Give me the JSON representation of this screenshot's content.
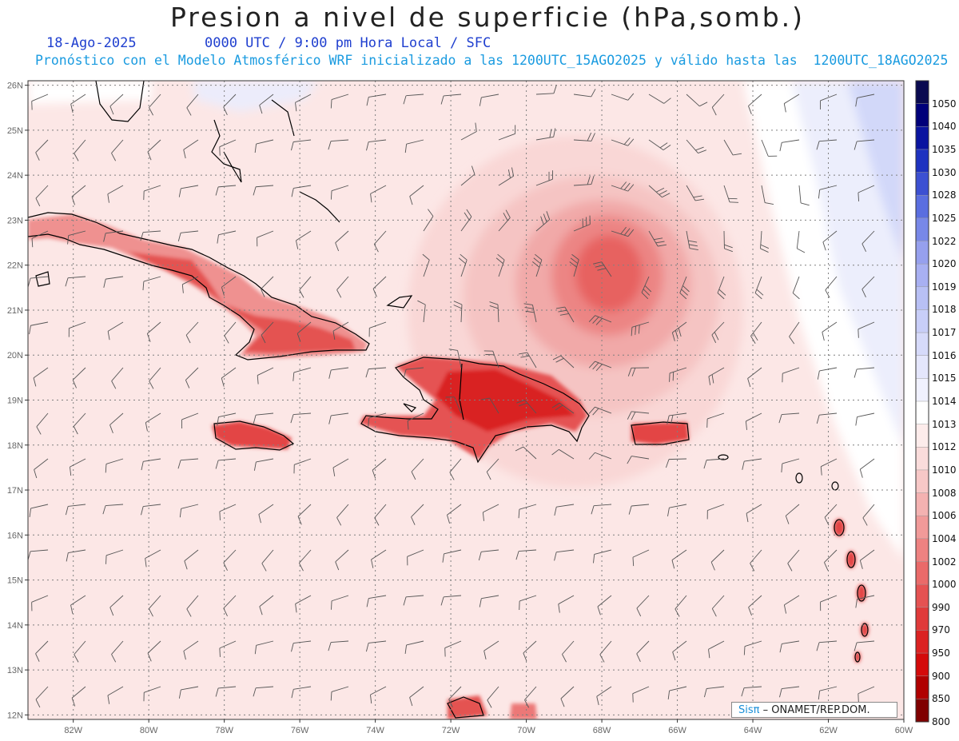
{
  "header": {
    "title": "Presion a nivel de superficie (hPa,somb.)",
    "date": "18-Ago-2025",
    "time_info": "0000 UTC / 9:00 pm Hora Local / SFC",
    "forecast_info": "Pronóstico con el Modelo Atmosférico WRF inicializado a las 1200UTC_15AGO2025 y válido hasta las  1200UTC_18AGO2025"
  },
  "map": {
    "lat_labels": [
      "26N",
      "25N",
      "24N",
      "23N",
      "22N",
      "21N",
      "20N",
      "19N",
      "18N",
      "17N",
      "16N",
      "15N",
      "14N",
      "13N",
      "12N"
    ],
    "lon_labels": [
      "82W",
      "80W",
      "78W",
      "76W",
      "74W",
      "72W",
      "70W",
      "68W",
      "66W",
      "64W",
      "62W",
      "60W"
    ],
    "low_center": {
      "lon": -67.7,
      "lat": 21.8
    }
  },
  "colorbar": {
    "levels": [
      {
        "label": "1050",
        "color": "#0a0a50"
      },
      {
        "label": "1040",
        "color": "#00007a"
      },
      {
        "label": "1035",
        "color": "#0a14a0"
      },
      {
        "label": "1030",
        "color": "#1e32c0"
      },
      {
        "label": "1028",
        "color": "#3c50d2"
      },
      {
        "label": "1025",
        "color": "#5a6ee0"
      },
      {
        "label": "1022",
        "color": "#7888e8"
      },
      {
        "label": "1020",
        "color": "#96a0ee"
      },
      {
        "label": "1019",
        "color": "#a8b0f2"
      },
      {
        "label": "1018",
        "color": "#b8c0f5"
      },
      {
        "label": "1017",
        "color": "#c8cef8"
      },
      {
        "label": "1016",
        "color": "#d6dafa"
      },
      {
        "label": "1015",
        "color": "#e4e6fc"
      },
      {
        "label": "1014",
        "color": "#f0f1fe"
      },
      {
        "label": "1013",
        "color": "#ffffff"
      },
      {
        "label": "1012",
        "color": "#fdeceb"
      },
      {
        "label": "1010",
        "color": "#fadcdb"
      },
      {
        "label": "1008",
        "color": "#f7c8c7"
      },
      {
        "label": "1006",
        "color": "#f4b2b1"
      },
      {
        "label": "1004",
        "color": "#f19a99"
      },
      {
        "label": "1002",
        "color": "#ee8281"
      },
      {
        "label": "1000",
        "color": "#ea6a69"
      },
      {
        "label": "990",
        "color": "#e55252"
      },
      {
        "label": "970",
        "color": "#e03a3a"
      },
      {
        "label": "950",
        "color": "#db2222"
      },
      {
        "label": "900",
        "color": "#d40a0a"
      },
      {
        "label": "850",
        "color": "#b00000"
      },
      {
        "label": "800",
        "color": "#800000"
      }
    ]
  },
  "credit": {
    "brand": "Sisπ",
    "text": " – ONAMET/REP.DOM."
  }
}
